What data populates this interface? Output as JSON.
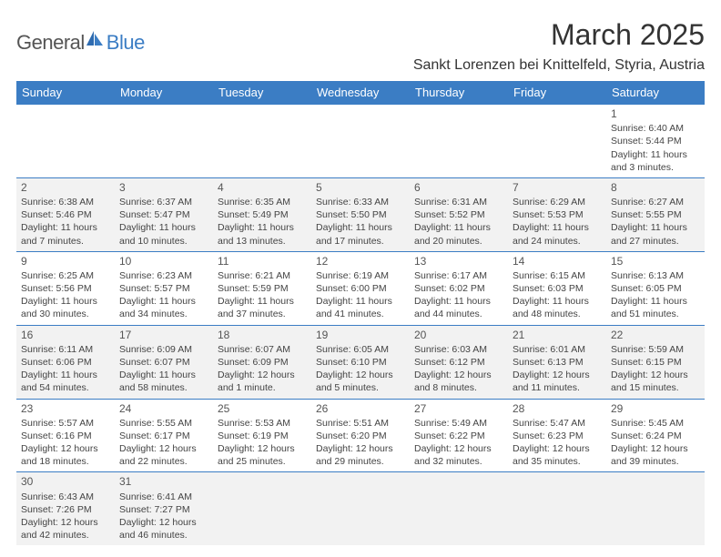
{
  "brand": {
    "part1": "General",
    "part2": "Blue"
  },
  "title": "March 2025",
  "subtitle": "Sankt Lorenzen bei Knittelfeld, Styria, Austria",
  "colors": {
    "header_bg": "#3b7dc4",
    "header_text": "#ffffff",
    "cell_border": "#3b7dc4",
    "shaded_bg": "#f2f2f2",
    "text": "#333333"
  },
  "day_headers": [
    "Sunday",
    "Monday",
    "Tuesday",
    "Wednesday",
    "Thursday",
    "Friday",
    "Saturday"
  ],
  "weeks": [
    [
      {
        "empty": true
      },
      {
        "empty": true
      },
      {
        "empty": true
      },
      {
        "empty": true
      },
      {
        "empty": true
      },
      {
        "empty": true
      },
      {
        "n": "1",
        "sunrise": "Sunrise: 6:40 AM",
        "sunset": "Sunset: 5:44 PM",
        "daylight1": "Daylight: 11 hours",
        "daylight2": "and 3 minutes."
      }
    ],
    [
      {
        "n": "2",
        "shaded": true,
        "sunrise": "Sunrise: 6:38 AM",
        "sunset": "Sunset: 5:46 PM",
        "daylight1": "Daylight: 11 hours",
        "daylight2": "and 7 minutes."
      },
      {
        "n": "3",
        "shaded": true,
        "sunrise": "Sunrise: 6:37 AM",
        "sunset": "Sunset: 5:47 PM",
        "daylight1": "Daylight: 11 hours",
        "daylight2": "and 10 minutes."
      },
      {
        "n": "4",
        "shaded": true,
        "sunrise": "Sunrise: 6:35 AM",
        "sunset": "Sunset: 5:49 PM",
        "daylight1": "Daylight: 11 hours",
        "daylight2": "and 13 minutes."
      },
      {
        "n": "5",
        "shaded": true,
        "sunrise": "Sunrise: 6:33 AM",
        "sunset": "Sunset: 5:50 PM",
        "daylight1": "Daylight: 11 hours",
        "daylight2": "and 17 minutes."
      },
      {
        "n": "6",
        "shaded": true,
        "sunrise": "Sunrise: 6:31 AM",
        "sunset": "Sunset: 5:52 PM",
        "daylight1": "Daylight: 11 hours",
        "daylight2": "and 20 minutes."
      },
      {
        "n": "7",
        "shaded": true,
        "sunrise": "Sunrise: 6:29 AM",
        "sunset": "Sunset: 5:53 PM",
        "daylight1": "Daylight: 11 hours",
        "daylight2": "and 24 minutes."
      },
      {
        "n": "8",
        "shaded": true,
        "sunrise": "Sunrise: 6:27 AM",
        "sunset": "Sunset: 5:55 PM",
        "daylight1": "Daylight: 11 hours",
        "daylight2": "and 27 minutes."
      }
    ],
    [
      {
        "n": "9",
        "sunrise": "Sunrise: 6:25 AM",
        "sunset": "Sunset: 5:56 PM",
        "daylight1": "Daylight: 11 hours",
        "daylight2": "and 30 minutes."
      },
      {
        "n": "10",
        "sunrise": "Sunrise: 6:23 AM",
        "sunset": "Sunset: 5:57 PM",
        "daylight1": "Daylight: 11 hours",
        "daylight2": "and 34 minutes."
      },
      {
        "n": "11",
        "sunrise": "Sunrise: 6:21 AM",
        "sunset": "Sunset: 5:59 PM",
        "daylight1": "Daylight: 11 hours",
        "daylight2": "and 37 minutes."
      },
      {
        "n": "12",
        "sunrise": "Sunrise: 6:19 AM",
        "sunset": "Sunset: 6:00 PM",
        "daylight1": "Daylight: 11 hours",
        "daylight2": "and 41 minutes."
      },
      {
        "n": "13",
        "sunrise": "Sunrise: 6:17 AM",
        "sunset": "Sunset: 6:02 PM",
        "daylight1": "Daylight: 11 hours",
        "daylight2": "and 44 minutes."
      },
      {
        "n": "14",
        "sunrise": "Sunrise: 6:15 AM",
        "sunset": "Sunset: 6:03 PM",
        "daylight1": "Daylight: 11 hours",
        "daylight2": "and 48 minutes."
      },
      {
        "n": "15",
        "sunrise": "Sunrise: 6:13 AM",
        "sunset": "Sunset: 6:05 PM",
        "daylight1": "Daylight: 11 hours",
        "daylight2": "and 51 minutes."
      }
    ],
    [
      {
        "n": "16",
        "shaded": true,
        "sunrise": "Sunrise: 6:11 AM",
        "sunset": "Sunset: 6:06 PM",
        "daylight1": "Daylight: 11 hours",
        "daylight2": "and 54 minutes."
      },
      {
        "n": "17",
        "shaded": true,
        "sunrise": "Sunrise: 6:09 AM",
        "sunset": "Sunset: 6:07 PM",
        "daylight1": "Daylight: 11 hours",
        "daylight2": "and 58 minutes."
      },
      {
        "n": "18",
        "shaded": true,
        "sunrise": "Sunrise: 6:07 AM",
        "sunset": "Sunset: 6:09 PM",
        "daylight1": "Daylight: 12 hours",
        "daylight2": "and 1 minute."
      },
      {
        "n": "19",
        "shaded": true,
        "sunrise": "Sunrise: 6:05 AM",
        "sunset": "Sunset: 6:10 PM",
        "daylight1": "Daylight: 12 hours",
        "daylight2": "and 5 minutes."
      },
      {
        "n": "20",
        "shaded": true,
        "sunrise": "Sunrise: 6:03 AM",
        "sunset": "Sunset: 6:12 PM",
        "daylight1": "Daylight: 12 hours",
        "daylight2": "and 8 minutes."
      },
      {
        "n": "21",
        "shaded": true,
        "sunrise": "Sunrise: 6:01 AM",
        "sunset": "Sunset: 6:13 PM",
        "daylight1": "Daylight: 12 hours",
        "daylight2": "and 11 minutes."
      },
      {
        "n": "22",
        "shaded": true,
        "sunrise": "Sunrise: 5:59 AM",
        "sunset": "Sunset: 6:15 PM",
        "daylight1": "Daylight: 12 hours",
        "daylight2": "and 15 minutes."
      }
    ],
    [
      {
        "n": "23",
        "sunrise": "Sunrise: 5:57 AM",
        "sunset": "Sunset: 6:16 PM",
        "daylight1": "Daylight: 12 hours",
        "daylight2": "and 18 minutes."
      },
      {
        "n": "24",
        "sunrise": "Sunrise: 5:55 AM",
        "sunset": "Sunset: 6:17 PM",
        "daylight1": "Daylight: 12 hours",
        "daylight2": "and 22 minutes."
      },
      {
        "n": "25",
        "sunrise": "Sunrise: 5:53 AM",
        "sunset": "Sunset: 6:19 PM",
        "daylight1": "Daylight: 12 hours",
        "daylight2": "and 25 minutes."
      },
      {
        "n": "26",
        "sunrise": "Sunrise: 5:51 AM",
        "sunset": "Sunset: 6:20 PM",
        "daylight1": "Daylight: 12 hours",
        "daylight2": "and 29 minutes."
      },
      {
        "n": "27",
        "sunrise": "Sunrise: 5:49 AM",
        "sunset": "Sunset: 6:22 PM",
        "daylight1": "Daylight: 12 hours",
        "daylight2": "and 32 minutes."
      },
      {
        "n": "28",
        "sunrise": "Sunrise: 5:47 AM",
        "sunset": "Sunset: 6:23 PM",
        "daylight1": "Daylight: 12 hours",
        "daylight2": "and 35 minutes."
      },
      {
        "n": "29",
        "sunrise": "Sunrise: 5:45 AM",
        "sunset": "Sunset: 6:24 PM",
        "daylight1": "Daylight: 12 hours",
        "daylight2": "and 39 minutes."
      }
    ],
    [
      {
        "n": "30",
        "shaded": true,
        "sunrise": "Sunrise: 6:43 AM",
        "sunset": "Sunset: 7:26 PM",
        "daylight1": "Daylight: 12 hours",
        "daylight2": "and 42 minutes."
      },
      {
        "n": "31",
        "shaded": true,
        "sunrise": "Sunrise: 6:41 AM",
        "sunset": "Sunset: 7:27 PM",
        "daylight1": "Daylight: 12 hours",
        "daylight2": "and 46 minutes."
      },
      {
        "empty": true,
        "shaded": true
      },
      {
        "empty": true,
        "shaded": true
      },
      {
        "empty": true,
        "shaded": true
      },
      {
        "empty": true,
        "shaded": true
      },
      {
        "empty": true,
        "shaded": true
      }
    ]
  ]
}
